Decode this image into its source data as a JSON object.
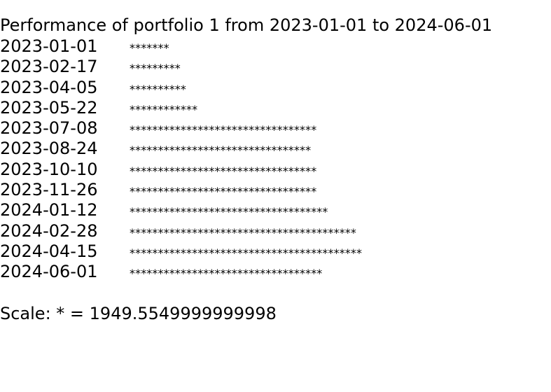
{
  "chart_data": {
    "type": "bar",
    "orientation": "horizontal",
    "title": "Performance of portfolio 1 from 2023-01-01 to 2024-06-01",
    "bar_symbol": "*",
    "scale_label": "Scale: * = 1949.5549999999998",
    "scale_value": 1949.5549999999998,
    "categories": [
      "2023-01-01",
      "2023-02-17",
      "2023-04-05",
      "2023-05-22",
      "2023-07-08",
      "2023-08-24",
      "2023-10-10",
      "2023-11-26",
      "2024-01-12",
      "2024-02-28",
      "2024-04-15",
      "2024-06-01"
    ],
    "star_counts": [
      7,
      9,
      10,
      12,
      33,
      32,
      33,
      33,
      35,
      40,
      41,
      34
    ]
  }
}
